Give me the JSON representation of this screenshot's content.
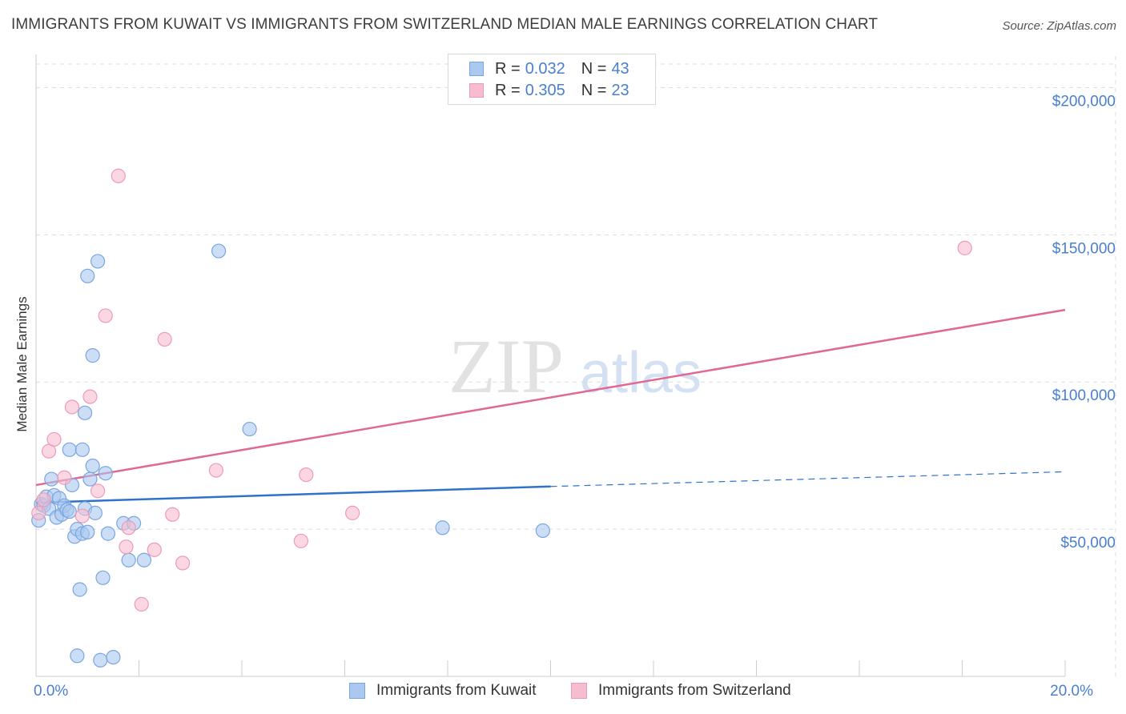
{
  "title": "IMMIGRANTS FROM KUWAIT VS IMMIGRANTS FROM SWITZERLAND MEDIAN MALE EARNINGS CORRELATION CHART",
  "source": "Source: ZipAtlas.com",
  "watermark": {
    "zip": "ZIP",
    "atlas": "atlas"
  },
  "legend": {
    "kuwait": {
      "r_label": "R =",
      "r_value": "0.032",
      "n_label": "N =",
      "n_value": "43"
    },
    "switzerland": {
      "r_label": "R =",
      "r_value": "0.305",
      "n_label": "N =",
      "n_value": "23"
    }
  },
  "bottom_legend": {
    "kuwait": "Immigrants from Kuwait",
    "switzerland": "Immigrants from Switzerland"
  },
  "colors": {
    "kuwait_fill": "#aac8f0",
    "kuwait_stroke": "#7aa6df",
    "kuwait_line": "#2e72cc",
    "swiss_fill": "#f6bdd0",
    "swiss_stroke": "#ee9ab6",
    "swiss_line": "#e06892",
    "axis_text": "#4a7fd0",
    "grid": "#dddddd"
  },
  "chart_data": {
    "type": "scatter",
    "title": "IMMIGRANTS FROM KUWAIT VS IMMIGRANTS FROM SWITZERLAND MEDIAN MALE EARNINGS CORRELATION CHART",
    "xlabel": "",
    "ylabel": "Median Male Earnings",
    "xlim": [
      0,
      20
    ],
    "ylim": [
      0,
      208000
    ],
    "x_tick_labels": [
      {
        "value": 0,
        "label": "0.0%"
      },
      {
        "value": 20,
        "label": "20.0%"
      }
    ],
    "y_ticks": [
      {
        "value": 50000,
        "label": "$50,000"
      },
      {
        "value": 100000,
        "label": "$100,000"
      },
      {
        "value": 150000,
        "label": "$150,000"
      },
      {
        "value": 200000,
        "label": "$200,000"
      }
    ],
    "series": [
      {
        "name": "Immigrants from Kuwait",
        "points": [
          [
            0.05,
            53000
          ],
          [
            0.1,
            58500
          ],
          [
            0.15,
            58000
          ],
          [
            0.2,
            61000
          ],
          [
            0.25,
            57000
          ],
          [
            0.3,
            67000
          ],
          [
            0.35,
            61500
          ],
          [
            0.4,
            54000
          ],
          [
            0.45,
            60500
          ],
          [
            0.5,
            55000
          ],
          [
            0.55,
            58000
          ],
          [
            0.6,
            56500
          ],
          [
            0.65,
            56000
          ],
          [
            0.65,
            77000
          ],
          [
            0.7,
            65000
          ],
          [
            0.75,
            47500
          ],
          [
            0.8,
            7000
          ],
          [
            0.8,
            50000
          ],
          [
            0.85,
            29500
          ],
          [
            0.95,
            89500
          ],
          [
            0.9,
            48500
          ],
          [
            0.9,
            77000
          ],
          [
            0.95,
            57000
          ],
          [
            1.0,
            49000
          ],
          [
            1.0,
            136000
          ],
          [
            1.05,
            67000
          ],
          [
            1.1,
            109000
          ],
          [
            1.1,
            71500
          ],
          [
            1.15,
            55500
          ],
          [
            1.2,
            141000
          ],
          [
            1.25,
            5500
          ],
          [
            1.3,
            33500
          ],
          [
            1.35,
            69000
          ],
          [
            1.4,
            48500
          ],
          [
            1.5,
            6500
          ],
          [
            1.7,
            52000
          ],
          [
            1.8,
            39500
          ],
          [
            1.9,
            52000
          ],
          [
            2.1,
            39500
          ],
          [
            3.55,
            144500
          ],
          [
            4.15,
            84000
          ],
          [
            7.9,
            50500
          ],
          [
            9.85,
            49500
          ]
        ]
      },
      {
        "name": "Immigrants from Switzerland",
        "points": [
          [
            0.05,
            55500
          ],
          [
            0.15,
            60000
          ],
          [
            0.25,
            76500
          ],
          [
            0.35,
            80500
          ],
          [
            0.55,
            67500
          ],
          [
            0.7,
            91500
          ],
          [
            0.9,
            54500
          ],
          [
            1.05,
            95000
          ],
          [
            1.2,
            63000
          ],
          [
            1.35,
            122500
          ],
          [
            1.6,
            170000
          ],
          [
            1.75,
            44000
          ],
          [
            1.8,
            50500
          ],
          [
            2.05,
            24500
          ],
          [
            2.3,
            43000
          ],
          [
            2.5,
            114500
          ],
          [
            2.65,
            55000
          ],
          [
            2.85,
            38500
          ],
          [
            3.5,
            70000
          ],
          [
            5.15,
            46000
          ],
          [
            5.25,
            68500
          ],
          [
            6.15,
            55500
          ],
          [
            18.05,
            145500
          ]
        ]
      }
    ],
    "trend_lines": [
      {
        "name": "Immigrants from Kuwait",
        "solid_from": [
          0,
          59000
        ],
        "solid_to": [
          10,
          64500
        ],
        "dashed_to": [
          20,
          69500
        ]
      },
      {
        "name": "Immigrants from Switzerland",
        "from": [
          0,
          65000
        ],
        "to": [
          20,
          124500
        ]
      }
    ],
    "legend_position": "top-center"
  }
}
